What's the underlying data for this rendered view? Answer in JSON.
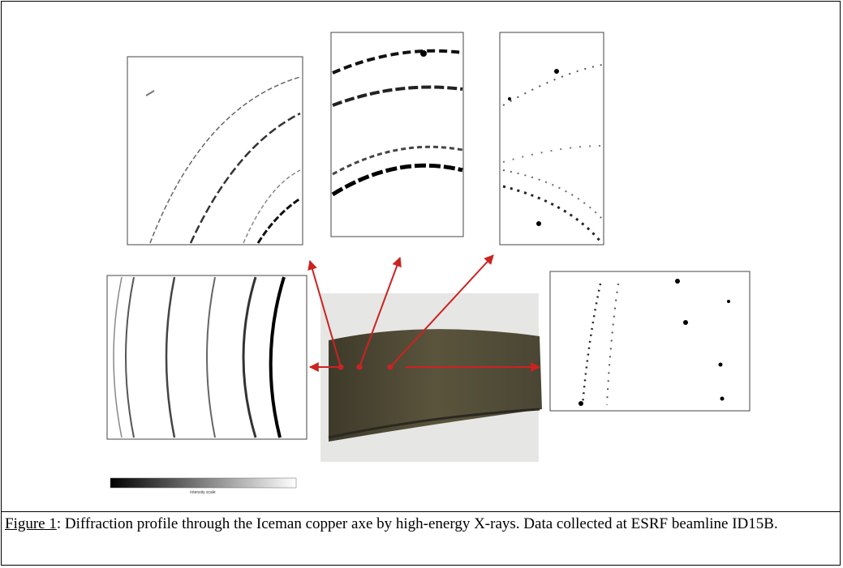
{
  "caption": {
    "label": "Figure 1",
    "text": ": Diffraction profile through the Iceman copper axe by high-energy X-rays. Data collected at ESRF beamline ID15B."
  },
  "intensity_scale": {
    "label": "intensity scale"
  },
  "colors": {
    "arrow": "#cc2222",
    "frame": "#000000",
    "axe_photo_bg": "#e6e6e4"
  }
}
